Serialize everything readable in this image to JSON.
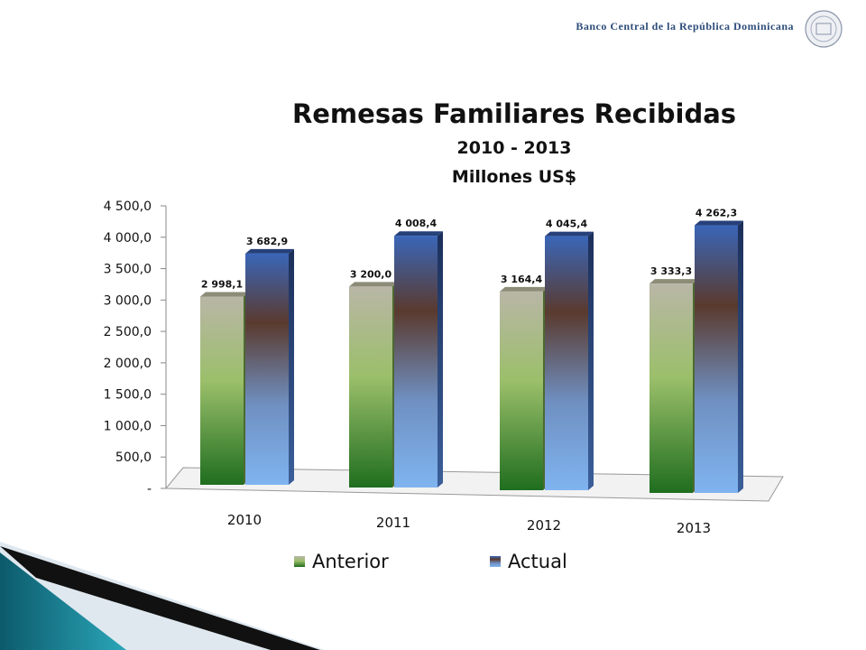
{
  "header": {
    "bank_name": "Banco Central de la República Dominicana"
  },
  "chart_data": {
    "type": "bar",
    "title": "Remesas Familiares Recibidas",
    "subtitle": "2010 - 2013",
    "unit_label": "Millones US$",
    "categories": [
      "2010",
      "2011",
      "2012",
      "2013"
    ],
    "series": [
      {
        "name": "Anterior",
        "values": [
          2998.1,
          3200.0,
          3164.4,
          3333.3
        ],
        "labels": [
          "2 998,1",
          "3 200,0",
          "3 164,4",
          "3 333,3"
        ]
      },
      {
        "name": "Actual",
        "values": [
          3682.9,
          4008.4,
          4045.4,
          4262.3
        ],
        "labels": [
          "3 682,9",
          "4 008,4",
          "4 045,4",
          "4 262,3"
        ]
      }
    ],
    "ylim": [
      0,
      4500
    ],
    "yticks": [
      "-",
      "500,0",
      "1 000,0",
      "1 500,0",
      "2 000,0",
      "2 500,0",
      "3 000,0",
      "3 500,0",
      "4 000,0",
      "4 500,0"
    ],
    "legend_position": "bottom",
    "colors": {
      "anterior": "#6aa84f",
      "actual": "#5b8fd6"
    }
  }
}
